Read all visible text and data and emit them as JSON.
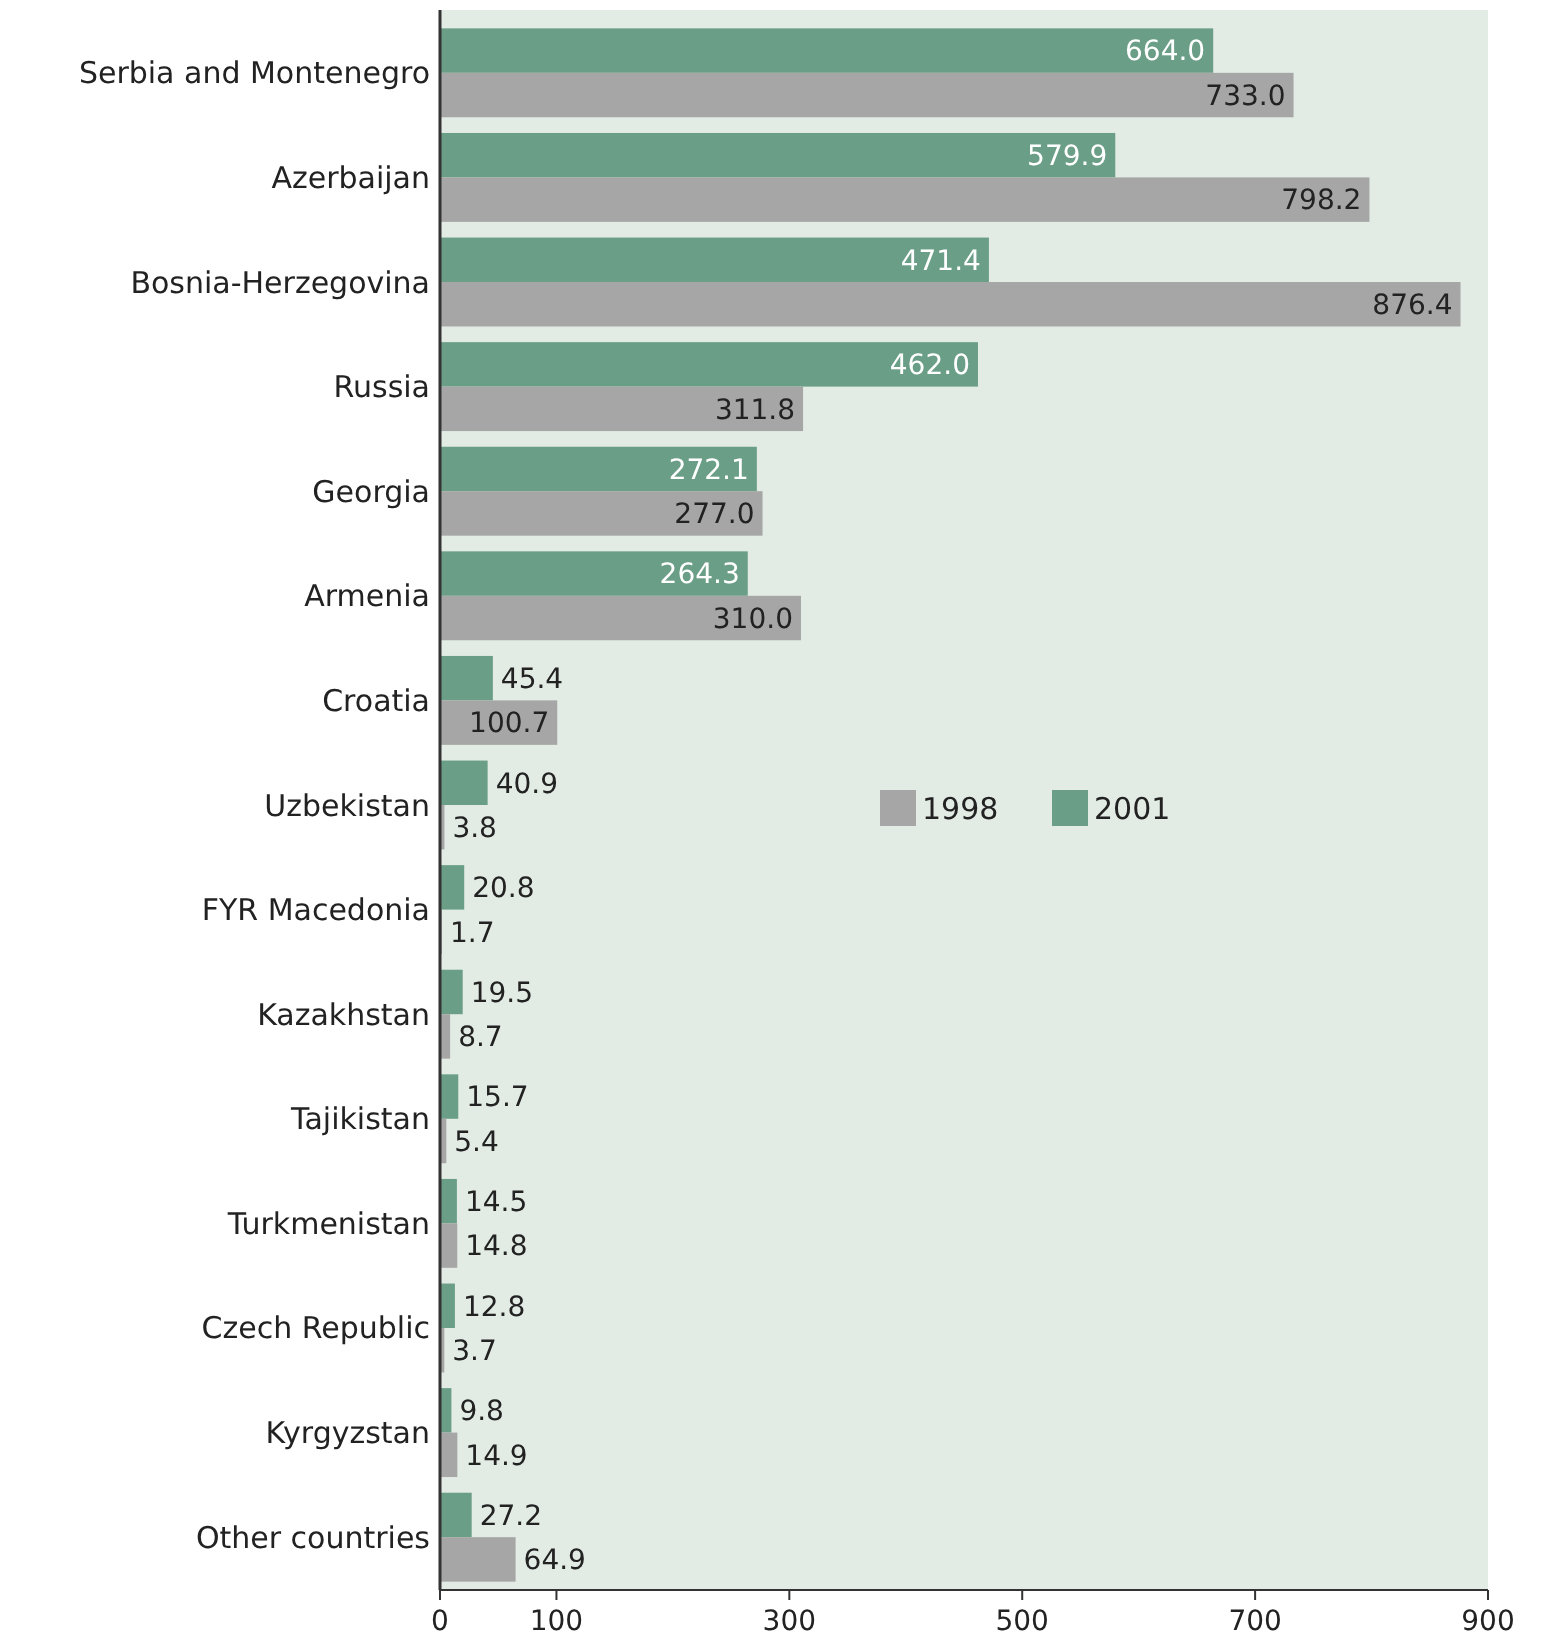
{
  "chart_data": {
    "type": "bar",
    "orientation": "horizontal",
    "categories": [
      "Serbia and Montenegro",
      "Azerbaijan",
      "Bosnia-Herzegovina",
      "Russia",
      "Georgia",
      "Armenia",
      "Croatia",
      "Uzbekistan",
      "FYR Macedonia",
      "Kazakhstan",
      "Tajikistan",
      "Turkmenistan",
      "Czech Republic",
      "Kyrgyzstan",
      "Other countries"
    ],
    "series": [
      {
        "name": "2001",
        "color": "#6a9e86",
        "values": [
          664.0,
          579.9,
          471.4,
          462.0,
          272.1,
          264.3,
          45.4,
          40.9,
          20.8,
          19.5,
          15.7,
          14.5,
          12.8,
          9.8,
          27.2
        ],
        "value_labels": [
          "664.0",
          "579.9",
          "471.4",
          "462.0",
          "272.1",
          "264.3",
          "45.4",
          "40.9",
          "20.8",
          "19.5",
          "15.7",
          "14.5",
          "12.8",
          "9.8",
          "27.2"
        ]
      },
      {
        "name": "1998",
        "color": "#a6a6a6",
        "values": [
          733.0,
          798.2,
          876.4,
          311.8,
          277.0,
          310.0,
          100.7,
          3.8,
          1.7,
          8.7,
          5.4,
          14.8,
          3.7,
          14.9,
          64.9
        ],
        "value_labels": [
          "733.0",
          "798.2",
          "876.4",
          "311.8",
          "277.0",
          "310.0",
          "100.7",
          "3.8",
          "1.7",
          "8.7",
          "5.4",
          "14.8",
          "3.7",
          "14.9",
          "64.9"
        ]
      }
    ],
    "xlim": [
      0,
      900
    ],
    "xticks": [
      0,
      100,
      300,
      500,
      700,
      900
    ],
    "legend": "right",
    "grid": false
  }
}
